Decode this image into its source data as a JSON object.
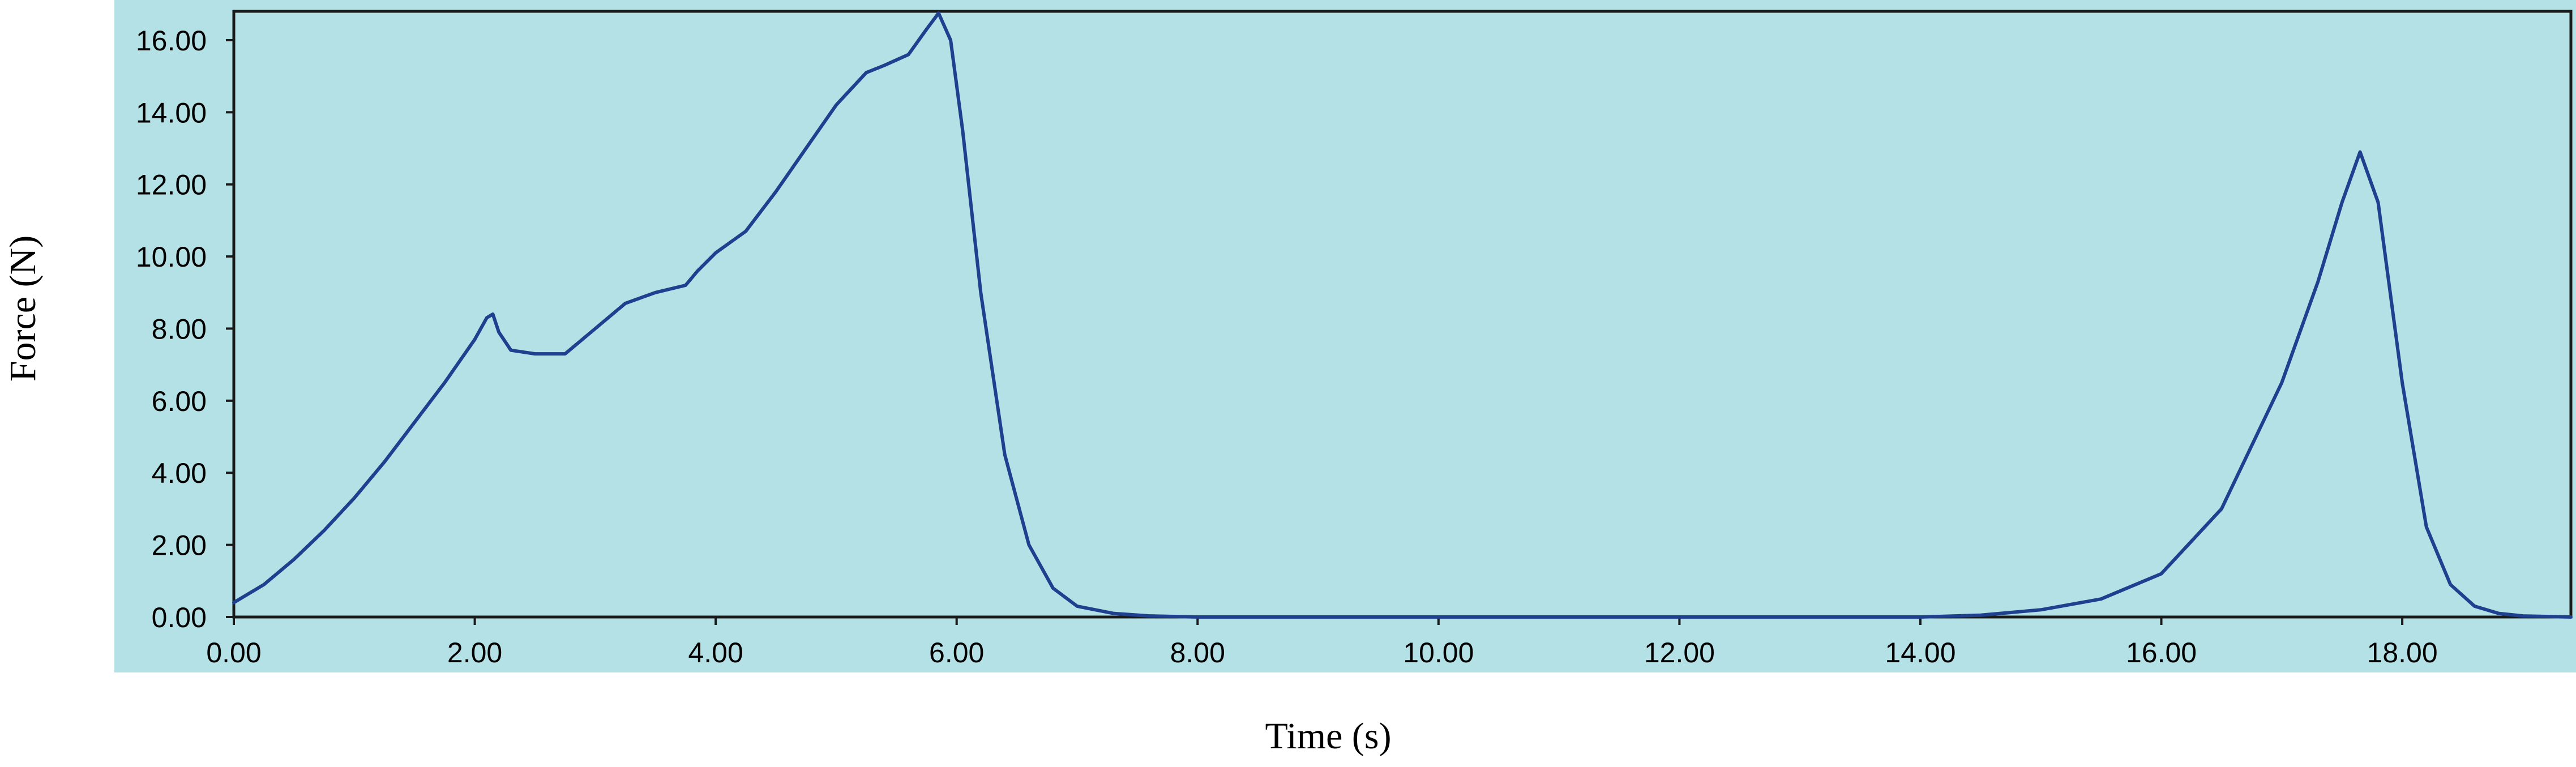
{
  "chart_data": {
    "type": "line",
    "title": "",
    "xlabel": "Time (s)",
    "ylabel": "Force (N)",
    "xlim": [
      0,
      19.4
    ],
    "ylim": [
      0,
      16.8
    ],
    "xticks": [
      "0.00",
      "2.00",
      "4.00",
      "6.00",
      "8.00",
      "10.00",
      "12.00",
      "14.00",
      "16.00",
      "18.00"
    ],
    "yticks": [
      "0.00",
      "2.00",
      "4.00",
      "6.00",
      "8.00",
      "10.00",
      "12.00",
      "14.00",
      "16.00"
    ],
    "grid": false,
    "legend": "none",
    "colors": {
      "panel_background": "#b3e1e6",
      "line": "#1f3f8f",
      "frame": "#1a1a1a",
      "tick_text": "#000000"
    },
    "series": [
      {
        "x": [
          0,
          0.25,
          0.5,
          0.75,
          1.0,
          1.25,
          1.5,
          1.75,
          2.0,
          2.1,
          2.15,
          2.2,
          2.3,
          2.5,
          2.75,
          3.0,
          3.25,
          3.5,
          3.75,
          3.85,
          4.0,
          4.25,
          4.5,
          4.75,
          5.0,
          5.25,
          5.4,
          5.6,
          5.75,
          5.85,
          5.95,
          6.05,
          6.2,
          6.4,
          6.6,
          6.8,
          7.0,
          7.3,
          7.6,
          8.0,
          9.0,
          10.0,
          11.0,
          12.0,
          13.0,
          14.0,
          14.5,
          15.0,
          15.5,
          16.0,
          16.5,
          17.0,
          17.3,
          17.5,
          17.65,
          17.8,
          18.0,
          18.2,
          18.4,
          18.6,
          18.8,
          19.0,
          19.4
        ],
        "y": [
          0.4,
          0.9,
          1.6,
          2.4,
          3.3,
          4.3,
          5.4,
          6.5,
          7.7,
          8.3,
          8.4,
          7.9,
          7.4,
          7.3,
          7.3,
          8.0,
          8.7,
          9.0,
          9.2,
          9.6,
          10.1,
          10.7,
          11.8,
          13.0,
          14.2,
          15.1,
          15.3,
          15.6,
          16.3,
          16.75,
          16.0,
          13.5,
          9.0,
          4.5,
          2.0,
          0.8,
          0.3,
          0.1,
          0.03,
          0.0,
          0.0,
          0.0,
          0.0,
          0.0,
          0.0,
          0.0,
          0.05,
          0.2,
          0.5,
          1.2,
          3.0,
          6.5,
          9.3,
          11.5,
          12.9,
          11.5,
          6.5,
          2.5,
          0.9,
          0.3,
          0.1,
          0.03,
          0.0
        ]
      }
    ]
  }
}
